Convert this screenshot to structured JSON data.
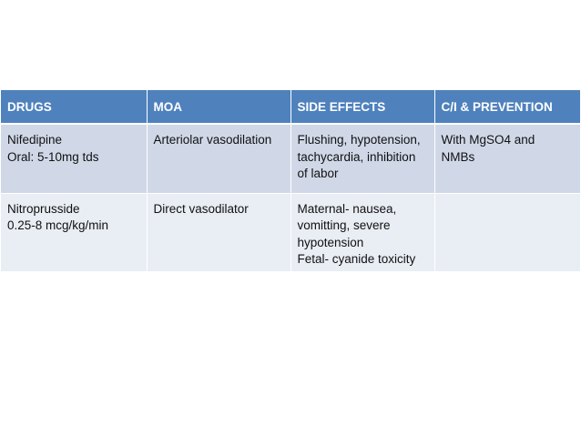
{
  "table": {
    "headers": [
      "DRUGS",
      "MOA",
      "SIDE EFFECTS",
      "C/I & PREVENTION"
    ],
    "rows": [
      {
        "drug": [
          "Nifedipine",
          "Oral: 5-10mg tds"
        ],
        "moa": [
          "Arteriolar vasodilation"
        ],
        "side_effects": [
          "Flushing, hypotension,",
          "tachycardia, inhibition",
          "of labor"
        ],
        "ci_prevention": [
          "With MgSO4 and",
          "NMBs"
        ]
      },
      {
        "drug": [
          "Nitroprusside",
          "0.25-8 mcg/kg/min"
        ],
        "moa": [
          "Direct vasodilator"
        ],
        "side_effects": [
          "Maternal- nausea,",
          "vomitting, severe",
          "hypotension",
          "Fetal- cyanide toxicity"
        ],
        "ci_prevention": []
      }
    ]
  },
  "colors": {
    "header_bg": "#4f81bd",
    "row_odd_bg": "#d0d8e8",
    "row_even_bg": "#e9edf4",
    "header_text": "#ffffff",
    "body_text": "#111111"
  }
}
